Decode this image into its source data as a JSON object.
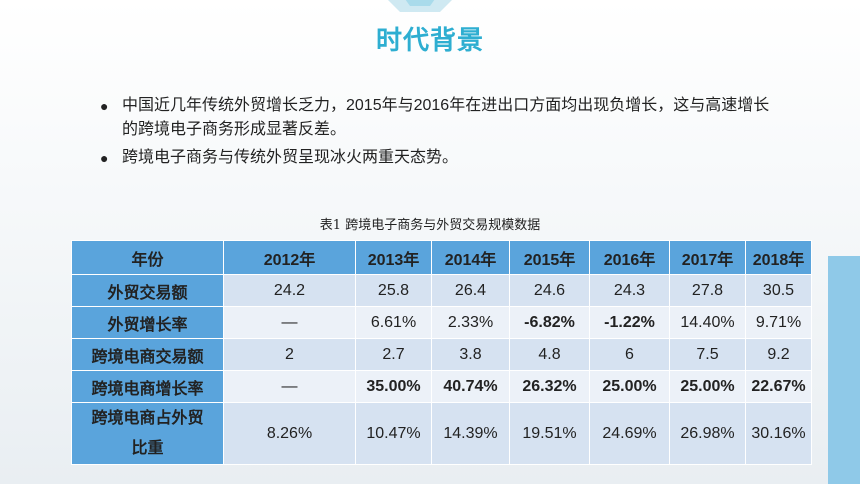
{
  "title": "时代背景",
  "bullets": [
    "中国近几年传统外贸增长乏力，2015年与2016年在进出口方面均出现负增长，这与高速增长的跨境电子商务形成显著反差。",
    "跨境电子商务与传统外贸呈现冰火两重天态势。"
  ],
  "table": {
    "caption": "表1  跨境电子商务与外贸交易规模数据",
    "header": [
      "年份",
      "2012年",
      "2013年",
      "2014年",
      "2015年",
      "2016年",
      "2017年",
      "2018年"
    ],
    "rows": [
      {
        "label": "外贸交易额",
        "cells": [
          "24.2",
          "25.8",
          "26.4",
          "24.6",
          "24.3",
          "27.8",
          "30.5"
        ]
      },
      {
        "label": "外贸增长率",
        "cells": [
          "—",
          "6.61%",
          "2.33%",
          "-6.82%",
          "-1.22%",
          "14.40%",
          "9.71%"
        ]
      },
      {
        "label": "跨境电商交易额",
        "cells": [
          "2",
          "2.7",
          "3.8",
          "4.8",
          "6",
          "7.5",
          "9.2"
        ]
      },
      {
        "label": "跨境电商增长率",
        "cells": [
          "—",
          "35.00%",
          "40.74%",
          "26.32%",
          "25.00%",
          "25.00%",
          "22.67%"
        ]
      },
      {
        "label_line1": "跨境电商占外贸",
        "label_line2": "比重",
        "cells": [
          "8.26%",
          "10.47%",
          "14.39%",
          "19.51%",
          "24.69%",
          "26.98%",
          "30.16%"
        ]
      }
    ]
  },
  "colors": {
    "title": "#2eaed1",
    "header_bg": "#5aa4dc",
    "highlight": "#e00000"
  }
}
